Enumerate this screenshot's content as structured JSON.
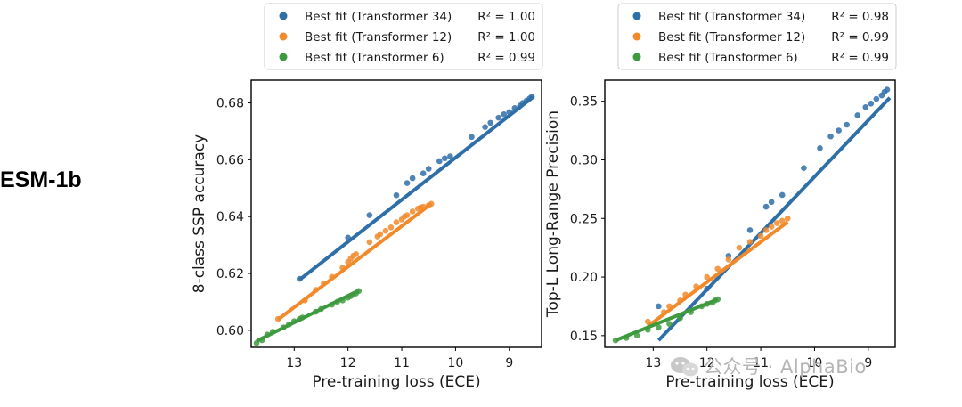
{
  "row_label": "ESM-1b",
  "watermark": "公众号 · AlphaBio",
  "colors": {
    "t34": "#2f6fa8",
    "t12": "#f28a2b",
    "t6": "#3e9a3e"
  },
  "chart_data": [
    {
      "type": "scatter",
      "title": "",
      "xlabel": "Pre-training loss (ECE)",
      "ylabel": "8-class SSP accuracy",
      "x_inverted": true,
      "xlim": [
        13.8,
        8.4
      ],
      "ylim": [
        0.594,
        0.688
      ],
      "xticks": [
        13,
        12,
        11,
        10,
        9
      ],
      "yticks": [
        0.6,
        0.62,
        0.64,
        0.66,
        0.68
      ],
      "ytick_labels": [
        "0.60",
        "0.62",
        "0.64",
        "0.66",
        "0.68"
      ],
      "legend_position": "top",
      "series": [
        {
          "name": "Best fit (Transformer 34)",
          "r2_label": "R² = 1.00",
          "color": "#2f6fa8",
          "fit": [
            [
              12.9,
              0.6178
            ],
            [
              8.55,
              0.6822
            ]
          ],
          "points": [
            [
              12.9,
              0.6181
            ],
            [
              12.0,
              0.6326
            ],
            [
              11.6,
              0.6405
            ],
            [
              11.1,
              0.6475
            ],
            [
              10.9,
              0.6518
            ],
            [
              10.8,
              0.6535
            ],
            [
              10.6,
              0.6552
            ],
            [
              10.5,
              0.6568
            ],
            [
              10.3,
              0.6595
            ],
            [
              10.2,
              0.6605
            ],
            [
              10.1,
              0.6612
            ],
            [
              9.7,
              0.668
            ],
            [
              9.45,
              0.6715
            ],
            [
              9.35,
              0.673
            ],
            [
              9.2,
              0.6748
            ],
            [
              9.1,
              0.676
            ],
            [
              9.0,
              0.6768
            ],
            [
              8.9,
              0.6782
            ],
            [
              8.8,
              0.679
            ],
            [
              8.75,
              0.68
            ],
            [
              8.68,
              0.6808
            ],
            [
              8.62,
              0.6816
            ],
            [
              8.58,
              0.6822
            ]
          ]
        },
        {
          "name": "Best fit (Transformer 12)",
          "r2_label": "R² = 1.00",
          "color": "#f28a2b",
          "fit": [
            [
              13.3,
              0.6038
            ],
            [
              10.45,
              0.6445
            ]
          ],
          "points": [
            [
              13.3,
              0.604
            ],
            [
              12.8,
              0.6105
            ],
            [
              12.6,
              0.6142
            ],
            [
              12.45,
              0.6165
            ],
            [
              12.3,
              0.6188
            ],
            [
              12.1,
              0.622
            ],
            [
              12.0,
              0.624
            ],
            [
              11.95,
              0.6252
            ],
            [
              11.9,
              0.6262
            ],
            [
              11.85,
              0.6268
            ],
            [
              11.6,
              0.631
            ],
            [
              11.45,
              0.633
            ],
            [
              11.4,
              0.6338
            ],
            [
              11.3,
              0.635
            ],
            [
              11.2,
              0.6362
            ],
            [
              11.1,
              0.638
            ],
            [
              11.0,
              0.639
            ],
            [
              10.95,
              0.64
            ],
            [
              10.9,
              0.6405
            ],
            [
              10.8,
              0.6418
            ],
            [
              10.7,
              0.6428
            ],
            [
              10.65,
              0.6432
            ],
            [
              10.6,
              0.6435
            ],
            [
              10.5,
              0.644
            ],
            [
              10.45,
              0.6445
            ]
          ]
        },
        {
          "name": "Best fit (Transformer 6)",
          "r2_label": "R² = 0.99",
          "color": "#3e9a3e",
          "fit": [
            [
              13.7,
              0.5962
            ],
            [
              11.8,
              0.614
            ]
          ],
          "points": [
            [
              13.7,
              0.5955
            ],
            [
              13.6,
              0.5965
            ],
            [
              13.5,
              0.5985
            ],
            [
              13.4,
              0.5995
            ],
            [
              13.2,
              0.601
            ],
            [
              13.1,
              0.602
            ],
            [
              13.0,
              0.6032
            ],
            [
              12.9,
              0.604
            ],
            [
              12.85,
              0.6045
            ],
            [
              12.6,
              0.6065
            ],
            [
              12.5,
              0.6075
            ],
            [
              12.3,
              0.609
            ],
            [
              12.2,
              0.61
            ],
            [
              12.1,
              0.6105
            ],
            [
              12.0,
              0.6115
            ],
            [
              11.95,
              0.612
            ],
            [
              11.9,
              0.6125
            ],
            [
              11.85,
              0.613
            ],
            [
              11.8,
              0.6138
            ]
          ]
        }
      ]
    },
    {
      "type": "scatter",
      "title": "",
      "xlabel": "Pre-training loss (ECE)",
      "ylabel": "Top-L Long-Range Precision",
      "x_inverted": true,
      "xlim": [
        13.9,
        8.5
      ],
      "ylim": [
        0.14,
        0.368
      ],
      "xticks": [
        13,
        12,
        11,
        10,
        9
      ],
      "yticks": [
        0.15,
        0.2,
        0.25,
        0.3,
        0.35
      ],
      "ytick_labels": [
        "0.15",
        "0.20",
        "0.25",
        "0.30",
        "0.35"
      ],
      "legend_position": "top",
      "series": [
        {
          "name": "Best fit (Transformer 34)",
          "r2_label": "R² = 0.98",
          "color": "#2f6fa8",
          "fit": [
            [
              12.9,
              0.146
            ],
            [
              8.6,
              0.353
            ]
          ],
          "points": [
            [
              12.9,
              0.175
            ],
            [
              12.0,
              0.19
            ],
            [
              11.6,
              0.218
            ],
            [
              11.2,
              0.24
            ],
            [
              10.9,
              0.26
            ],
            [
              10.8,
              0.264
            ],
            [
              10.6,
              0.27
            ],
            [
              10.2,
              0.293
            ],
            [
              9.9,
              0.31
            ],
            [
              9.7,
              0.32
            ],
            [
              9.55,
              0.325
            ],
            [
              9.4,
              0.33
            ],
            [
              9.2,
              0.338
            ],
            [
              9.05,
              0.345
            ],
            [
              8.95,
              0.348
            ],
            [
              8.85,
              0.352
            ],
            [
              8.75,
              0.355
            ],
            [
              8.7,
              0.358
            ],
            [
              8.65,
              0.36
            ]
          ]
        },
        {
          "name": "Best fit (Transformer 12)",
          "r2_label": "R² = 0.99",
          "color": "#f28a2b",
          "fit": [
            [
              13.1,
              0.158
            ],
            [
              10.5,
              0.247
            ]
          ],
          "points": [
            [
              13.1,
              0.162
            ],
            [
              12.8,
              0.17
            ],
            [
              12.7,
              0.175
            ],
            [
              12.5,
              0.18
            ],
            [
              12.4,
              0.185
            ],
            [
              12.2,
              0.192
            ],
            [
              12.0,
              0.2
            ],
            [
              11.8,
              0.207
            ],
            [
              11.6,
              0.215
            ],
            [
              11.4,
              0.225
            ],
            [
              11.2,
              0.23
            ],
            [
              11.0,
              0.235
            ],
            [
              10.9,
              0.24
            ],
            [
              10.8,
              0.243
            ],
            [
              10.7,
              0.246
            ],
            [
              10.6,
              0.248
            ],
            [
              10.5,
              0.25
            ]
          ]
        },
        {
          "name": "Best fit (Transformer 6)",
          "r2_label": "R² = 0.99",
          "color": "#3e9a3e",
          "fit": [
            [
              13.7,
              0.146
            ],
            [
              11.8,
              0.181
            ]
          ],
          "points": [
            [
              13.7,
              0.146
            ],
            [
              13.5,
              0.148
            ],
            [
              13.3,
              0.15
            ],
            [
              13.1,
              0.155
            ],
            [
              12.9,
              0.157
            ],
            [
              12.7,
              0.16
            ],
            [
              12.5,
              0.165
            ],
            [
              12.3,
              0.17
            ],
            [
              12.1,
              0.175
            ],
            [
              12.0,
              0.177
            ],
            [
              11.9,
              0.178
            ],
            [
              11.85,
              0.18
            ],
            [
              11.8,
              0.181
            ]
          ]
        }
      ]
    }
  ]
}
